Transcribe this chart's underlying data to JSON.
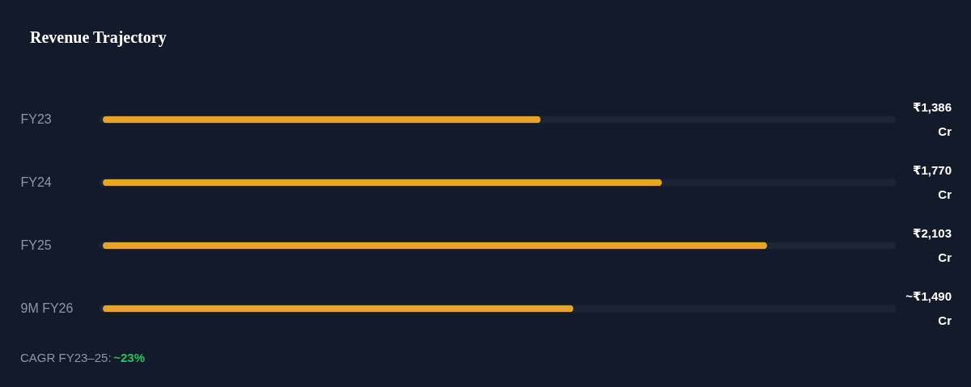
{
  "chart_data": {
    "type": "bar",
    "orientation": "horizontal",
    "title": "Revenue Trajectory",
    "categories": [
      "FY23",
      "FY24",
      "FY25",
      "9M FY26"
    ],
    "values": [
      1386,
      1770,
      2103,
      1490
    ],
    "color": "#e9a426",
    "xlim": [
      0,
      2500
    ],
    "value_labels": [
      "₹1,386 Cr",
      "₹1,770 Cr",
      "₹2,103 Cr",
      "~₹1,490 Cr"
    ],
    "annotations": [
      "CAGR FY23–25:",
      "~23%"
    ],
    "tick_labels": "y"
  }
}
